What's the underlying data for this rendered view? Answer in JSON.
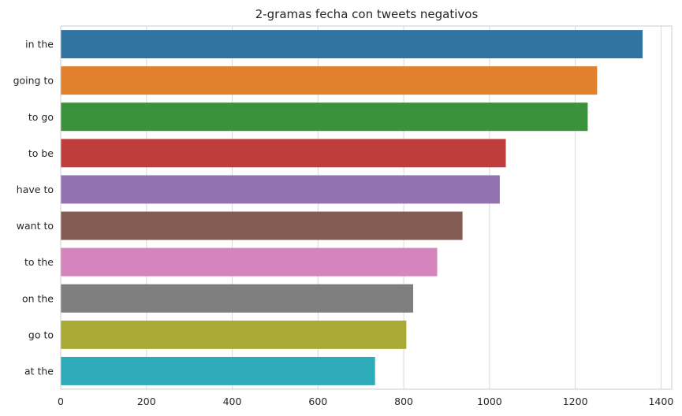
{
  "chart_data": {
    "type": "bar",
    "orientation": "horizontal",
    "title": "2-gramas fecha con tweets negativos",
    "xlabel": "",
    "ylabel": "",
    "categories": [
      "in the",
      "going to",
      "to go",
      "to be",
      "have to",
      "want to",
      "to the",
      "on the",
      "go to",
      "at the"
    ],
    "values": [
      1357,
      1251,
      1229,
      1038,
      1024,
      937,
      878,
      822,
      806,
      733
    ],
    "colors": [
      "#3274a1",
      "#e1812c",
      "#3a923a",
      "#c03d3e",
      "#9372b2",
      "#845b53",
      "#d684bd",
      "#7f7f7f",
      "#a9aa35",
      "#2eabb8"
    ],
    "xlim": [
      0,
      1425
    ],
    "xticks": [
      0,
      200,
      400,
      600,
      800,
      1000,
      1200,
      1400
    ],
    "grid": true,
    "style": "whitegrid"
  }
}
